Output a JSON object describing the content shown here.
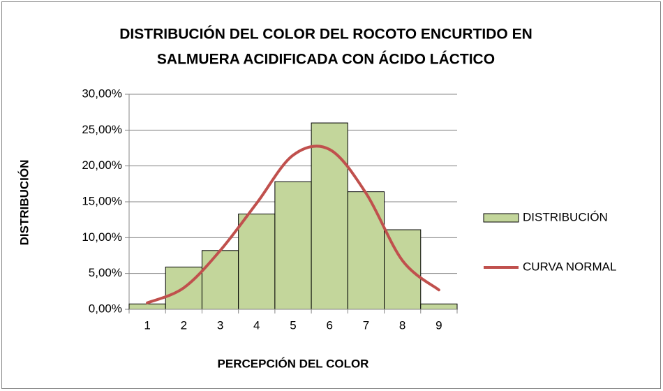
{
  "chart_data": {
    "type": "bar",
    "title": [
      "DISTRIBUCIÓN DEL COLOR DEL ROCOTO ENCURTIDO EN",
      "SALMUERA ACIDIFICADA CON ÁCIDO LÁCTICO"
    ],
    "x_label": "PERCEPCIÓN DEL COLOR",
    "y_label": "DISTRIBUCIÓN",
    "categories": [
      "1",
      "2",
      "3",
      "4",
      "5",
      "6",
      "7",
      "8",
      "9"
    ],
    "series": [
      {
        "name": "DISTRIBUCIÓN",
        "type": "bar",
        "color": "#c3d69b",
        "values": [
          0.75,
          5.9,
          8.2,
          13.3,
          17.8,
          26.0,
          16.4,
          11.1,
          0.75
        ]
      },
      {
        "name": "CURVA NORMAL",
        "type": "line",
        "color": "#c0504d",
        "values": [
          0.9,
          3.0,
          8.2,
          14.8,
          21.5,
          22.3,
          16.2,
          6.8,
          2.7
        ]
      }
    ],
    "ylim": [
      0,
      30
    ],
    "yticks": [
      {
        "value": 0,
        "label": "0,00%"
      },
      {
        "value": 5,
        "label": "5,00%"
      },
      {
        "value": 10,
        "label": "10,00%"
      },
      {
        "value": 15,
        "label": "15,00%"
      },
      {
        "value": 20,
        "label": "20,00%"
      },
      {
        "value": 25,
        "label": "25,00%"
      },
      {
        "value": 30,
        "label": "30,00%"
      }
    ],
    "grid": true,
    "legend": "right"
  }
}
